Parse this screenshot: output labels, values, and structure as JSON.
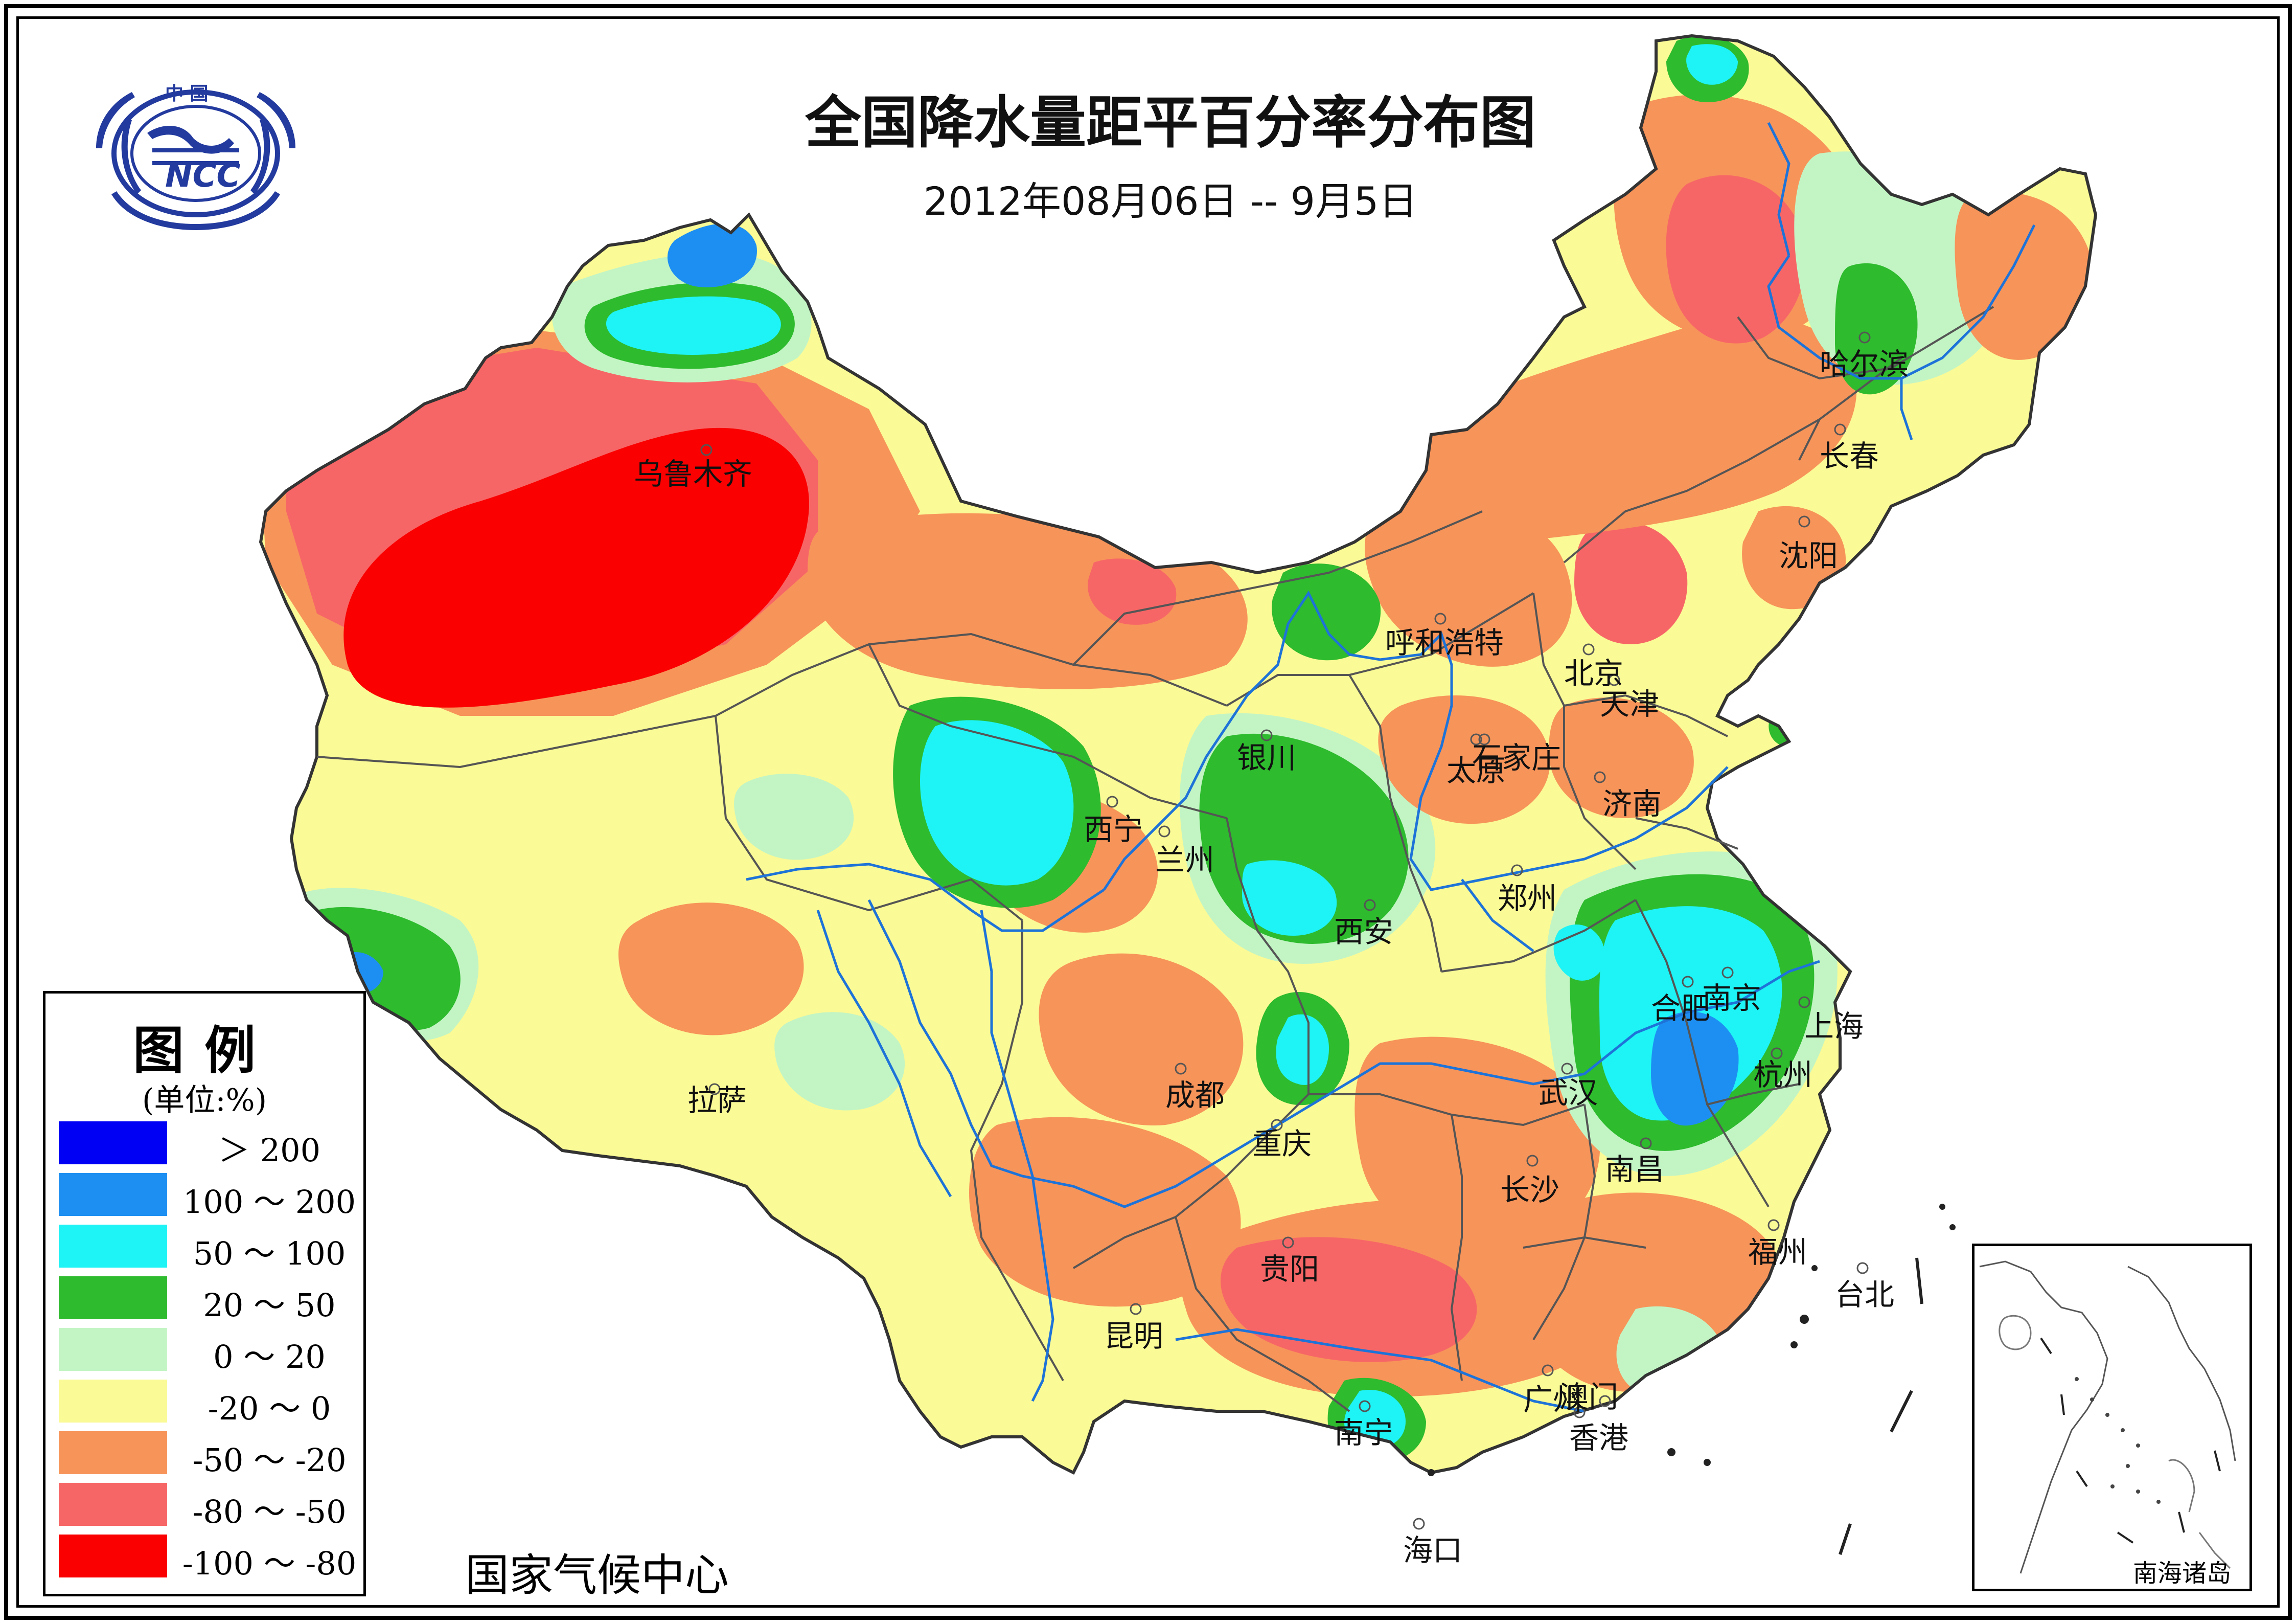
{
  "title": "全国降水量距平百分率分布图",
  "subtitle": "2012年08月06日 -- 9月5日",
  "logo": {
    "top_text": "中  国",
    "mark_text": "NCC"
  },
  "organization": "国家气候中心",
  "legend": {
    "title": "图例",
    "unit": "(单位:%)",
    "items": [
      {
        "label": "＞ 200",
        "color": "#0000f5"
      },
      {
        "label": "100 ～ 200",
        "color": "#1e8ff2"
      },
      {
        "label": "50 ～ 100",
        "color": "#1ef3f5"
      },
      {
        "label": "20 ～ 50",
        "color": "#2ebb2e"
      },
      {
        "label": "0 ～ 20",
        "color": "#c3f5c4"
      },
      {
        "label": "-20 ～ 0",
        "color": "#fafa96"
      },
      {
        "label": "-50 ～ -20",
        "color": "#f7945a"
      },
      {
        "label": "-80 ～ -50",
        "color": "#f76666"
      },
      {
        "label": "-100 ～ -80",
        "color": "#fa0000"
      }
    ]
  },
  "inset": {
    "label": "南海诸岛"
  },
  "cities": [
    {
      "name": "乌鲁木齐"
    },
    {
      "name": "哈尔滨"
    },
    {
      "name": "长春"
    },
    {
      "name": "沈阳"
    },
    {
      "name": "呼和浩特"
    },
    {
      "name": "北京"
    },
    {
      "name": "天津"
    },
    {
      "name": "银川"
    },
    {
      "name": "太原"
    },
    {
      "name": "石家庄"
    },
    {
      "name": "济南"
    },
    {
      "name": "西宁"
    },
    {
      "name": "兰州"
    },
    {
      "name": "郑州"
    },
    {
      "name": "西安"
    },
    {
      "name": "南京"
    },
    {
      "name": "合肥"
    },
    {
      "name": "上海"
    },
    {
      "name": "杭州"
    },
    {
      "name": "拉萨"
    },
    {
      "name": "成都"
    },
    {
      "name": "武汉"
    },
    {
      "name": "重庆"
    },
    {
      "name": "南昌"
    },
    {
      "name": "长沙"
    },
    {
      "name": "福州"
    },
    {
      "name": "贵阳"
    },
    {
      "name": "台北"
    },
    {
      "name": "昆明"
    },
    {
      "name": "广州"
    },
    {
      "name": "澳门"
    },
    {
      "name": "香港"
    },
    {
      "name": "南宁"
    },
    {
      "name": "海口"
    }
  ]
}
